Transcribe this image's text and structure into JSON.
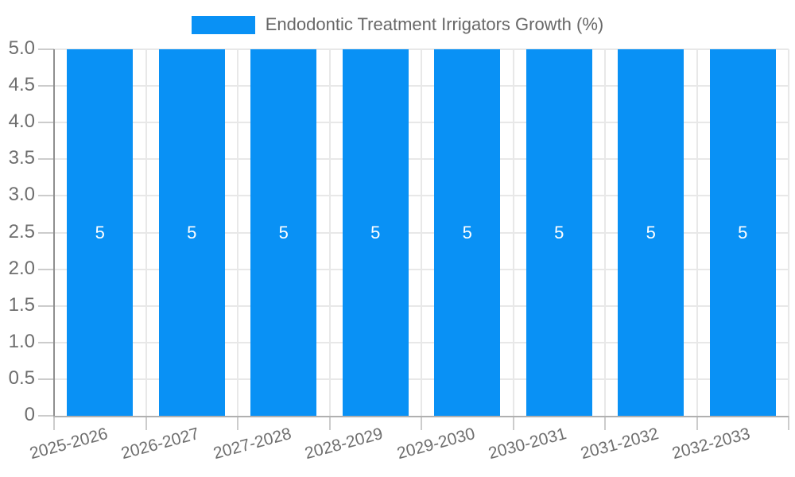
{
  "legend": {
    "label": "Endodontic Treatment Irrigators Growth (%)"
  },
  "chart_data": {
    "type": "bar",
    "title": "",
    "categories": [
      "2025-2026",
      "2026-2027",
      "2027-2028",
      "2028-2029",
      "2029-2030",
      "2030-2031",
      "2031-2032",
      "2032-2033"
    ],
    "series": [
      {
        "name": "Endodontic Treatment Irrigators Growth (%)",
        "values": [
          5,
          5,
          5,
          5,
          5,
          5,
          5,
          5
        ]
      }
    ],
    "bar_labels": [
      "5",
      "5",
      "5",
      "5",
      "5",
      "5",
      "5",
      "5"
    ],
    "xlabel": "",
    "ylabel": "",
    "ylim": [
      0,
      5
    ],
    "y_tick_values": [
      0,
      0.5,
      1,
      1.5,
      2,
      2.5,
      3,
      3.5,
      4,
      4.5,
      5
    ],
    "y_tick_labels": [
      "0",
      "0.5",
      "1.0",
      "1.5",
      "2.0",
      "2.5",
      "3.0",
      "3.5",
      "4.0",
      "4.5",
      "5.0"
    ],
    "grid": true,
    "legend_position": "top",
    "x_label_rotation_deg": -15,
    "colors": {
      "bar": "#0991f5",
      "grid": "#e8e8e8",
      "tick": "#cccccc",
      "y_axis_line": "#8f8f8f",
      "x_axis_line": "#b0b0b0",
      "axis_text": "#6e6e6e",
      "value_label": "#ffffff",
      "background": "#ffffff"
    }
  }
}
